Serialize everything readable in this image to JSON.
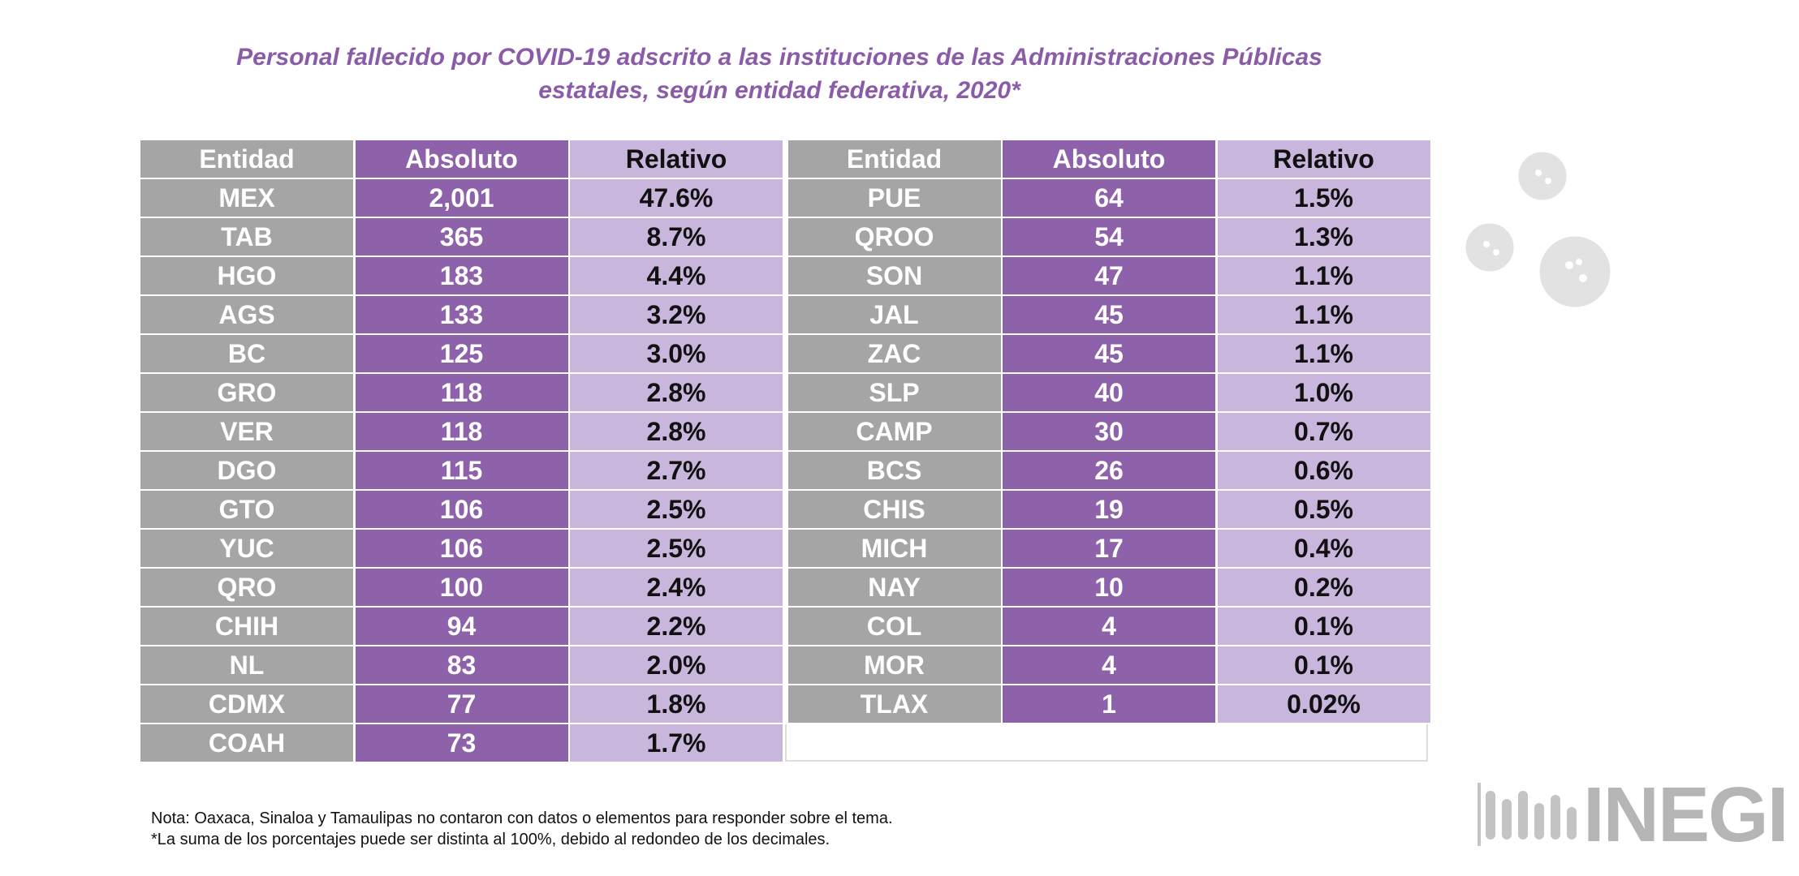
{
  "title": "Personal fallecido por COVID-19 adscrito a las instituciones de las Administraciones Públicas estatales, según entidad federativa, 2020*",
  "tables": [
    {
      "headers": [
        "Entidad",
        "Absoluto",
        "Relativo"
      ],
      "rows": [
        [
          "MEX",
          "2,001",
          "47.6%"
        ],
        [
          "TAB",
          "365",
          "8.7%"
        ],
        [
          "HGO",
          "183",
          "4.4%"
        ],
        [
          "AGS",
          "133",
          "3.2%"
        ],
        [
          "BC",
          "125",
          "3.0%"
        ],
        [
          "GRO",
          "118",
          "2.8%"
        ],
        [
          "VER",
          "118",
          "2.8%"
        ],
        [
          "DGO",
          "115",
          "2.7%"
        ],
        [
          "GTO",
          "106",
          "2.5%"
        ],
        [
          "YUC",
          "106",
          "2.5%"
        ],
        [
          "QRO",
          "100",
          "2.4%"
        ],
        [
          "CHIH",
          "94",
          "2.2%"
        ],
        [
          "NL",
          "83",
          "2.0%"
        ],
        [
          "CDMX",
          "77",
          "1.8%"
        ],
        [
          "COAH",
          "73",
          "1.7%"
        ]
      ]
    },
    {
      "headers": [
        "Entidad",
        "Absoluto",
        "Relativo"
      ],
      "rows": [
        [
          "PUE",
          "64",
          "1.5%"
        ],
        [
          "QROO",
          "54",
          "1.3%"
        ],
        [
          "SON",
          "47",
          "1.1%"
        ],
        [
          "JAL",
          "45",
          "1.1%"
        ],
        [
          "ZAC",
          "45",
          "1.1%"
        ],
        [
          "SLP",
          "40",
          "1.0%"
        ],
        [
          "CAMP",
          "30",
          "0.7%"
        ],
        [
          "BCS",
          "26",
          "0.6%"
        ],
        [
          "CHIS",
          "19",
          "0.5%"
        ],
        [
          "MICH",
          "17",
          "0.4%"
        ],
        [
          "NAY",
          "10",
          "0.2%"
        ],
        [
          "COL",
          "4",
          "0.1%"
        ],
        [
          "MOR",
          "4",
          "0.1%"
        ],
        [
          "TLAX",
          "1",
          "0.02%"
        ]
      ]
    }
  ],
  "notes": [
    "Nota: Oaxaca, Sinaloa y Tamaulipas no contaron con datos o elementos para responder sobre el tema.",
    "*La suma de los porcentajes puede ser distinta al 100%, debido al redondeo de los decimales."
  ],
  "logo": "INEGI"
}
